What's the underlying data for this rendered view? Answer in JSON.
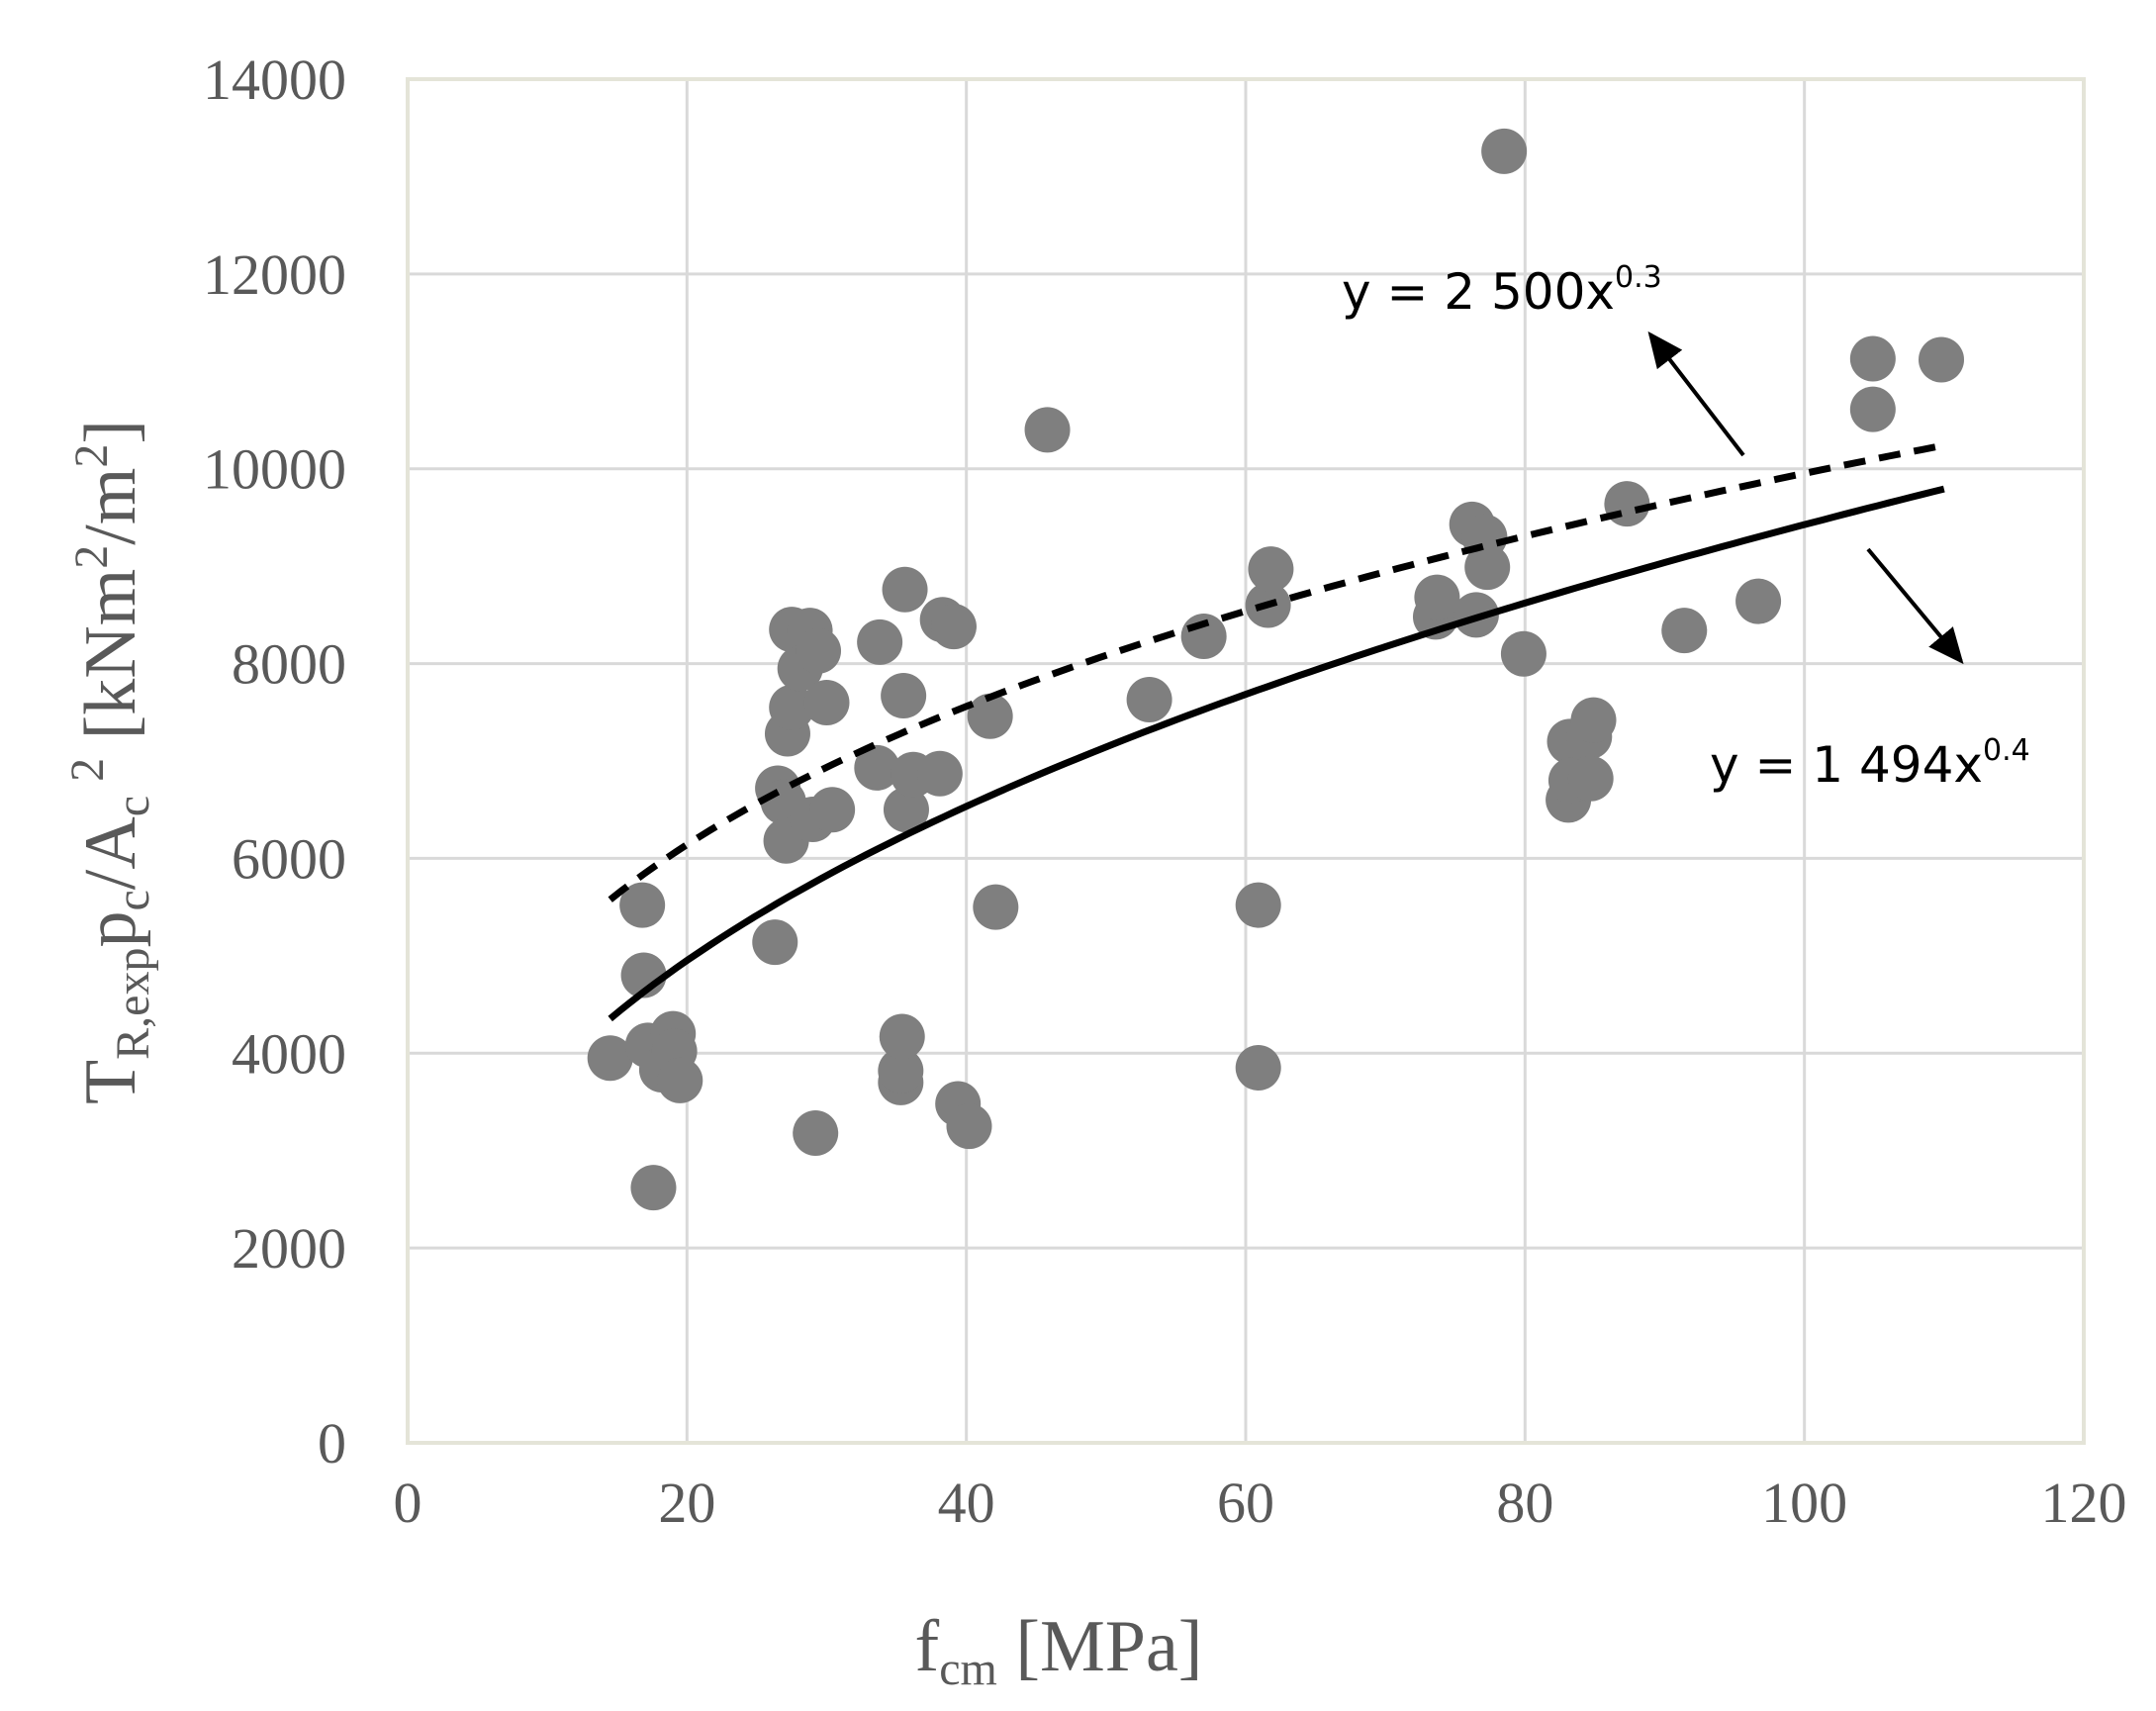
{
  "chart_data": {
    "type": "scatter",
    "xlim": [
      0,
      120
    ],
    "ylim": [
      0,
      14000
    ],
    "x_ticks": [
      "0",
      "20",
      "40",
      "60",
      "80",
      "100",
      "120"
    ],
    "y_ticks": [
      "0",
      "2000",
      "4000",
      "6000",
      "8000",
      "10000",
      "12000",
      "14000"
    ],
    "xlabel": {
      "main": "f",
      "sub": "cm",
      "rest": " [MPa]"
    },
    "ylabel": {
      "t": "T",
      "t_sub": "R,exp",
      "p": "p",
      "p_sub": "c",
      "a": "/A",
      "a_sub": "c",
      "a_sup": "2",
      "units_pre": " [kNm",
      "units_sup1": "2",
      "units_mid": "/m",
      "units_sup2": "2",
      "units_post": "]"
    },
    "grid": true,
    "colors": {
      "points": "#7f7f7f",
      "grid": "#d9d9d9",
      "curves": "#000000"
    },
    "series": [
      {
        "name": "experimental",
        "points": [
          [
            14.5,
            3950
          ],
          [
            16.8,
            5520
          ],
          [
            16.9,
            4800
          ],
          [
            17.2,
            4080
          ],
          [
            17.6,
            2620
          ],
          [
            18.2,
            3830
          ],
          [
            19.0,
            4200
          ],
          [
            19.1,
            4020
          ],
          [
            19.5,
            3720
          ],
          [
            26.3,
            5140
          ],
          [
            26.5,
            6720
          ],
          [
            26.9,
            6580
          ],
          [
            27.1,
            6180
          ],
          [
            27.2,
            7280
          ],
          [
            27.5,
            8350
          ],
          [
            27.5,
            7550
          ],
          [
            28.1,
            7950
          ],
          [
            28.8,
            8340
          ],
          [
            29.0,
            6400
          ],
          [
            29.2,
            3180
          ],
          [
            29.4,
            8130
          ],
          [
            30.0,
            7600
          ],
          [
            30.4,
            6500
          ],
          [
            33.6,
            6930
          ],
          [
            33.8,
            8220
          ],
          [
            35.3,
            3700
          ],
          [
            35.3,
            3820
          ],
          [
            35.4,
            4170
          ],
          [
            35.5,
            7670
          ],
          [
            35.6,
            8760
          ],
          [
            35.7,
            6500
          ],
          [
            36.2,
            6860
          ],
          [
            38.1,
            6870
          ],
          [
            38.3,
            8450
          ],
          [
            39.1,
            8380
          ],
          [
            39.4,
            3480
          ],
          [
            40.2,
            3250
          ],
          [
            41.7,
            7460
          ],
          [
            42.1,
            5500
          ],
          [
            45.8,
            10400
          ],
          [
            53.1,
            7630
          ],
          [
            57.0,
            8280
          ],
          [
            60.9,
            5520
          ],
          [
            60.9,
            3850
          ],
          [
            61.6,
            8600
          ],
          [
            61.8,
            8970
          ],
          [
            73.6,
            8480
          ],
          [
            73.7,
            8680
          ],
          [
            76.2,
            9430
          ],
          [
            76.5,
            8500
          ],
          [
            77.1,
            9300
          ],
          [
            77.3,
            8990
          ],
          [
            78.5,
            13260
          ],
          [
            79.9,
            8100
          ],
          [
            83.1,
            6600
          ],
          [
            83.2,
            7200
          ],
          [
            83.3,
            6800
          ],
          [
            84.6,
            7250
          ],
          [
            84.7,
            6820
          ],
          [
            84.9,
            7420
          ],
          [
            87.3,
            9640
          ],
          [
            91.4,
            8340
          ],
          [
            96.7,
            8640
          ],
          [
            104.9,
            11130
          ],
          [
            104.9,
            10610
          ],
          [
            109.8,
            11120
          ]
        ]
      },
      {
        "name": "dashed-fit",
        "coef": 2500,
        "exp": 0.3,
        "x_range": [
          14.5,
          110
        ],
        "style": "dashed"
      },
      {
        "name": "solid-fit",
        "coef": 1494,
        "exp": 0.4,
        "x_range": [
          14.5,
          110
        ],
        "style": "solid"
      }
    ],
    "annotations": {
      "dashed": {
        "base": "y = 2 500x",
        "sup": "0.3"
      },
      "solid": {
        "base": "y = 1 494x",
        "sup": "0.4"
      }
    }
  }
}
